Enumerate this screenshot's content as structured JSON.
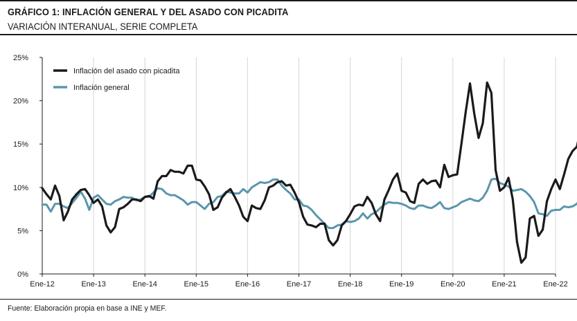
{
  "header": {
    "title": "GRÁFICO 1: INFLACIÓN GENERAL Y DEL ASADO CON PICADITA",
    "subtitle": "VARIACIÓN INTERANUAL, SERIE COMPLETA"
  },
  "footer": {
    "source": "Fuente: Elaboración propia en base a INE y MEF."
  },
  "chart_data": {
    "type": "line",
    "xlabel": "",
    "ylabel": "",
    "ylim": [
      0,
      25
    ],
    "y_ticks": [
      0,
      5,
      10,
      15,
      20,
      25
    ],
    "y_tick_labels": [
      "0%",
      "5%",
      "10%",
      "15%",
      "20%",
      "25%"
    ],
    "x_ticks": [
      "Ene-12",
      "Ene-13",
      "Ene-14",
      "Ene-15",
      "Ene-16",
      "Ene-17",
      "Ene-18",
      "Ene-19",
      "Ene-20",
      "Ene-21",
      "Ene-22"
    ],
    "grid": "vertical",
    "legend_position": "top-left",
    "series": [
      {
        "name": "Inflación del asado con picadita",
        "color": "#1a1a1a",
        "values": [
          9.9,
          9.2,
          8.6,
          10.2,
          9.0,
          6.2,
          7.2,
          8.6,
          9.2,
          9.7,
          9.8,
          9.1,
          8.2,
          8.6,
          7.8,
          5.6,
          4.8,
          5.4,
          7.5,
          7.7,
          8.1,
          8.6,
          8.6,
          8.4,
          8.9,
          9.0,
          8.7,
          10.7,
          11.3,
          11.3,
          12.0,
          11.8,
          11.8,
          11.6,
          12.5,
          12.5,
          10.9,
          10.8,
          10.1,
          9.2,
          7.4,
          7.7,
          8.8,
          9.4,
          9.8,
          8.9,
          7.9,
          6.6,
          6.1,
          7.9,
          7.6,
          7.5,
          8.5,
          10.0,
          10.2,
          10.6,
          10.7,
          10.2,
          10.3,
          9.4,
          8.3,
          6.6,
          5.7,
          5.6,
          5.4,
          5.8,
          5.8,
          3.9,
          3.3,
          3.9,
          5.6,
          6.1,
          6.9,
          7.8,
          8.0,
          7.9,
          8.9,
          8.2,
          6.9,
          6.1,
          8.6,
          9.7,
          10.9,
          11.6,
          9.6,
          9.4,
          8.4,
          8.2,
          10.4,
          10.9,
          10.4,
          10.7,
          10.8,
          10.0,
          12.6,
          11.2,
          11.4,
          11.5,
          15.0,
          18.7,
          22.0,
          18.5,
          15.7,
          17.4,
          22.1,
          20.9,
          12.0,
          9.6,
          10.0,
          11.1,
          8.6,
          3.7,
          1.3,
          1.9,
          6.4,
          6.7,
          4.4,
          5.1,
          8.4,
          9.8,
          10.9,
          9.8,
          11.5,
          13.3,
          14.2,
          14.7,
          17.0
        ]
      },
      {
        "name": "Inflación general",
        "color": "#5a96ad",
        "values": [
          8.0,
          8.0,
          7.2,
          8.1,
          8.1,
          7.8,
          7.6,
          8.2,
          8.8,
          9.5,
          8.7,
          7.4,
          8.8,
          9.1,
          8.6,
          8.1,
          8.0,
          8.4,
          8.6,
          8.9,
          8.8,
          8.8,
          8.5,
          8.6,
          8.9,
          8.9,
          9.4,
          9.9,
          9.8,
          9.3,
          9.1,
          9.1,
          8.8,
          8.5,
          8.0,
          8.3,
          8.3,
          7.9,
          7.5,
          8.1,
          8.3,
          8.9,
          9.0,
          9.5,
          9.4,
          9.3,
          9.3,
          9.8,
          9.4,
          10.0,
          10.3,
          10.6,
          10.5,
          10.6,
          10.9,
          10.9,
          10.2,
          9.7,
          9.3,
          8.6,
          8.6,
          7.9,
          7.8,
          7.4,
          6.8,
          6.3,
          5.8,
          5.3,
          5.3,
          5.6,
          5.7,
          6.1,
          6.0,
          6.1,
          6.4,
          7.0,
          6.4,
          6.9,
          7.1,
          7.6,
          8.0,
          8.3,
          8.2,
          8.2,
          8.1,
          7.9,
          7.6,
          7.5,
          7.9,
          7.9,
          7.7,
          7.6,
          7.9,
          8.3,
          7.6,
          7.5,
          7.7,
          7.9,
          8.3,
          8.5,
          8.7,
          8.5,
          8.4,
          8.8,
          9.6,
          10.9,
          11.0,
          10.5,
          10.3,
          10.1,
          9.6,
          9.7,
          9.8,
          9.5,
          9.0,
          8.3,
          7.0,
          6.9,
          6.7,
          7.3,
          7.4,
          7.4,
          7.8,
          7.7,
          7.8,
          8.1,
          8.9
        ]
      }
    ]
  }
}
